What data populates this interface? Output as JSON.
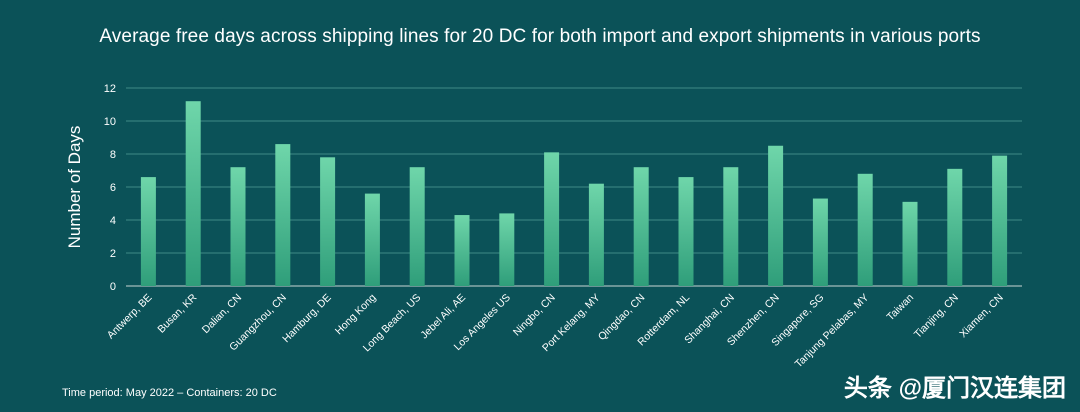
{
  "chart_data": {
    "type": "bar",
    "title": "Average free days across shipping lines for 20 DC for both import and export shipments in various ports",
    "xlabel": "",
    "ylabel": "Number of Days",
    "ylim": [
      0,
      12
    ],
    "yticks": [
      0,
      2,
      4,
      6,
      8,
      10,
      12
    ],
    "grid": true,
    "categories": [
      "Antwerp, BE",
      "Busan, KR",
      "Dalian, CN",
      "Guangzhou, CN",
      "Hamburg, DE",
      "Hong Kong",
      "Long Beach, US",
      "Jebel Ali, AE",
      "Los Angeles US",
      "Ningbo, CN",
      "Port Kelang, MY",
      "Qingdao, CN",
      "Rotterdam, NL",
      "Shanghai, CN",
      "Shenzhen, CN",
      "Singapore, SG",
      "Tanjung Pelabas, MY",
      "Taiwan",
      "Tianjing, CN",
      "Xiamen, CN"
    ],
    "values": [
      6.6,
      11.2,
      7.2,
      8.6,
      7.8,
      5.6,
      7.2,
      4.3,
      4.4,
      8.1,
      6.2,
      7.2,
      6.6,
      7.2,
      8.5,
      5.3,
      6.8,
      5.1,
      7.1,
      7.9
    ],
    "colors": {
      "bar_top": "#6fd6aa",
      "bar_bottom": "#2f9e7a",
      "grid": "#3f8a86",
      "axis": "#c9d6d5"
    }
  },
  "footnote": "Time period: May 2022 – Containers: 20 DC",
  "watermark": "头条 @厦门汉连集团"
}
